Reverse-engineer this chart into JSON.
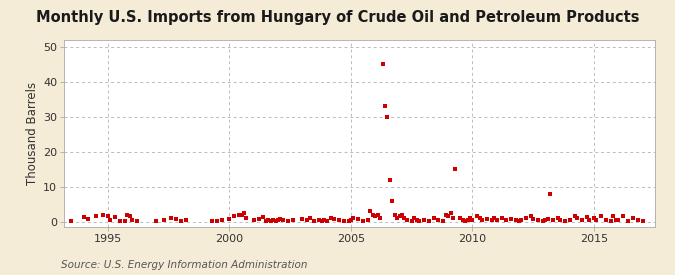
{
  "title": "Monthly U.S. Imports from Hungary of Crude Oil and Petroleum Products",
  "ylabel": "Thousand Barrels",
  "source": "Source: U.S. Energy Information Administration",
  "background_color": "#f5ecd7",
  "plot_bg_color": "#ffffff",
  "xlim": [
    1993.2,
    2017.5
  ],
  "ylim": [
    -1.5,
    52
  ],
  "yticks": [
    0,
    10,
    20,
    30,
    40,
    50
  ],
  "xticks": [
    1995,
    2000,
    2005,
    2010,
    2015
  ],
  "data_points": [
    [
      1993.5,
      0.2
    ],
    [
      1994.0,
      1.2
    ],
    [
      1994.2,
      0.8
    ],
    [
      1994.5,
      1.5
    ],
    [
      1994.8,
      1.8
    ],
    [
      1995.0,
      1.5
    ],
    [
      1995.1,
      0.5
    ],
    [
      1995.3,
      1.2
    ],
    [
      1995.5,
      0.3
    ],
    [
      1995.7,
      0.2
    ],
    [
      1995.8,
      1.8
    ],
    [
      1995.9,
      1.5
    ],
    [
      1996.0,
      0.5
    ],
    [
      1996.2,
      0.2
    ],
    [
      1997.0,
      0.3
    ],
    [
      1997.3,
      0.5
    ],
    [
      1997.6,
      1.0
    ],
    [
      1997.8,
      0.8
    ],
    [
      1998.0,
      0.2
    ],
    [
      1998.2,
      0.5
    ],
    [
      1999.3,
      0.3
    ],
    [
      1999.5,
      0.2
    ],
    [
      1999.7,
      0.5
    ],
    [
      2000.0,
      0.8
    ],
    [
      2000.2,
      1.5
    ],
    [
      2000.4,
      2.0
    ],
    [
      2000.5,
      1.8
    ],
    [
      2000.6,
      2.5
    ],
    [
      2000.7,
      1.0
    ],
    [
      2001.0,
      0.5
    ],
    [
      2001.2,
      0.8
    ],
    [
      2001.4,
      1.2
    ],
    [
      2001.5,
      0.3
    ],
    [
      2001.6,
      0.5
    ],
    [
      2001.7,
      0.2
    ],
    [
      2001.8,
      0.5
    ],
    [
      2001.9,
      0.3
    ],
    [
      2002.0,
      0.5
    ],
    [
      2002.1,
      0.8
    ],
    [
      2002.2,
      0.5
    ],
    [
      2002.4,
      0.3
    ],
    [
      2002.6,
      0.5
    ],
    [
      2003.0,
      0.8
    ],
    [
      2003.2,
      0.5
    ],
    [
      2003.3,
      1.0
    ],
    [
      2003.5,
      0.3
    ],
    [
      2003.7,
      0.5
    ],
    [
      2003.8,
      0.2
    ],
    [
      2003.9,
      0.5
    ],
    [
      2004.0,
      0.3
    ],
    [
      2004.2,
      1.0
    ],
    [
      2004.3,
      0.8
    ],
    [
      2004.5,
      0.5
    ],
    [
      2004.7,
      0.3
    ],
    [
      2004.9,
      0.2
    ],
    [
      2005.0,
      0.5
    ],
    [
      2005.1,
      1.0
    ],
    [
      2005.3,
      0.8
    ],
    [
      2005.5,
      0.3
    ],
    [
      2005.7,
      0.5
    ],
    [
      2005.8,
      3.0
    ],
    [
      2005.9,
      2.0
    ],
    [
      2006.0,
      1.5
    ],
    [
      2006.1,
      2.0
    ],
    [
      2006.2,
      1.0
    ],
    [
      2006.3,
      45.0
    ],
    [
      2006.4,
      33.0
    ],
    [
      2006.5,
      30.0
    ],
    [
      2006.6,
      12.0
    ],
    [
      2006.7,
      6.0
    ],
    [
      2006.8,
      2.0
    ],
    [
      2006.9,
      1.0
    ],
    [
      2007.0,
      1.5
    ],
    [
      2007.1,
      2.0
    ],
    [
      2007.2,
      1.0
    ],
    [
      2007.3,
      0.5
    ],
    [
      2007.5,
      0.3
    ],
    [
      2007.6,
      1.0
    ],
    [
      2007.7,
      0.5
    ],
    [
      2007.8,
      0.3
    ],
    [
      2008.0,
      0.5
    ],
    [
      2008.2,
      0.3
    ],
    [
      2008.4,
      1.0
    ],
    [
      2008.6,
      0.5
    ],
    [
      2008.8,
      0.3
    ],
    [
      2008.9,
      2.0
    ],
    [
      2009.0,
      1.5
    ],
    [
      2009.1,
      2.5
    ],
    [
      2009.2,
      1.0
    ],
    [
      2009.3,
      15.0
    ],
    [
      2009.5,
      1.0
    ],
    [
      2009.6,
      0.5
    ],
    [
      2009.7,
      0.3
    ],
    [
      2009.8,
      0.5
    ],
    [
      2009.9,
      1.0
    ],
    [
      2010.0,
      0.5
    ],
    [
      2010.2,
      1.5
    ],
    [
      2010.3,
      1.0
    ],
    [
      2010.4,
      0.5
    ],
    [
      2010.6,
      0.8
    ],
    [
      2010.8,
      0.5
    ],
    [
      2010.9,
      1.0
    ],
    [
      2011.0,
      0.5
    ],
    [
      2011.2,
      1.0
    ],
    [
      2011.4,
      0.5
    ],
    [
      2011.6,
      0.8
    ],
    [
      2011.8,
      0.5
    ],
    [
      2011.9,
      0.3
    ],
    [
      2012.0,
      0.5
    ],
    [
      2012.2,
      1.0
    ],
    [
      2012.4,
      1.5
    ],
    [
      2012.5,
      0.8
    ],
    [
      2012.7,
      0.5
    ],
    [
      2012.9,
      0.3
    ],
    [
      2013.0,
      0.5
    ],
    [
      2013.1,
      0.8
    ],
    [
      2013.2,
      8.0
    ],
    [
      2013.3,
      0.5
    ],
    [
      2013.5,
      1.0
    ],
    [
      2013.6,
      0.5
    ],
    [
      2013.8,
      0.3
    ],
    [
      2014.0,
      0.5
    ],
    [
      2014.2,
      1.5
    ],
    [
      2014.3,
      1.0
    ],
    [
      2014.5,
      0.5
    ],
    [
      2014.7,
      1.2
    ],
    [
      2014.8,
      0.5
    ],
    [
      2015.0,
      1.0
    ],
    [
      2015.1,
      0.5
    ],
    [
      2015.3,
      1.5
    ],
    [
      2015.5,
      0.5
    ],
    [
      2015.7,
      0.3
    ],
    [
      2015.8,
      1.5
    ],
    [
      2015.9,
      0.5
    ],
    [
      2016.0,
      0.5
    ],
    [
      2016.2,
      1.5
    ],
    [
      2016.4,
      0.3
    ],
    [
      2016.6,
      1.0
    ],
    [
      2016.8,
      0.5
    ],
    [
      2017.0,
      0.3
    ]
  ],
  "marker_color": "#cc0000",
  "marker_size": 5,
  "grid_color": "#bbbbbb",
  "title_fontsize": 10.5,
  "ylabel_fontsize": 8.5,
  "tick_fontsize": 8,
  "source_fontsize": 7.5
}
